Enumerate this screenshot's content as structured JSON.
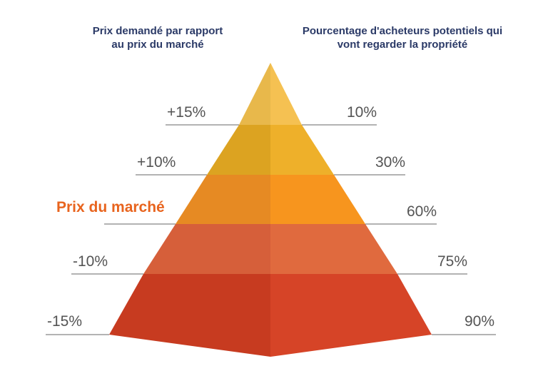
{
  "headers": {
    "left": "Prix demandé par rapport\nau prix du marché",
    "right": "Pourcentage d'acheteurs potentiels qui\nvont regarder la propriété"
  },
  "market_label": "Prix du marché",
  "tiers": [
    {
      "price": "+15%",
      "buyers": "10%",
      "color_left": "#e8b84b",
      "color_right": "#f5c152"
    },
    {
      "price": "+10%",
      "buyers": "30%",
      "color_left": "#dca321",
      "color_right": "#eeb02a"
    },
    {
      "price": "",
      "buyers": "60%",
      "color_left": "#e68a23",
      "color_right": "#f7951e"
    },
    {
      "price": "-10%",
      "buyers": "75%",
      "color_left": "#d65f3a",
      "color_right": "#e06a3e"
    },
    {
      "price": "-15%",
      "buyers": "90%",
      "color_left": "#c73b20",
      "color_right": "#d64427"
    }
  ],
  "colors": {
    "header": "#2b3a67",
    "accent": "#e8641e",
    "label": "#545454",
    "line": "#9a9a9a"
  }
}
